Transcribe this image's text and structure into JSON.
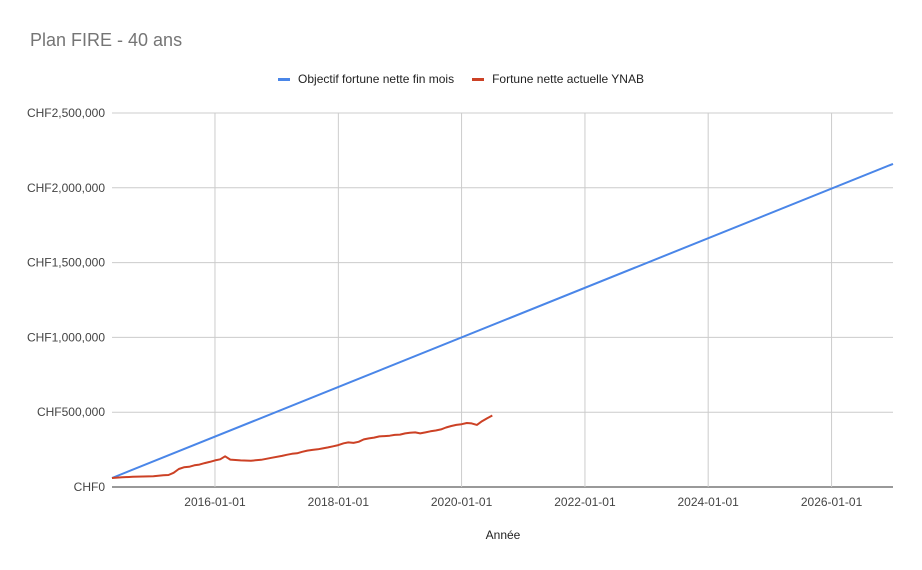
{
  "chart_data": {
    "type": "line",
    "title": "Plan FIRE - 40 ans",
    "xlabel": "Année",
    "ylabel": "",
    "x_range": [
      "2014-05-01",
      "2026-12-31"
    ],
    "ylim": [
      0,
      2500000
    ],
    "y_ticks": [
      0,
      500000,
      1000000,
      1500000,
      2000000,
      2500000
    ],
    "y_tick_labels": [
      "CHF0",
      "CHF500,000",
      "CHF1,000,000",
      "CHF1,500,000",
      "CHF2,000,000",
      "CHF2,500,000"
    ],
    "x_ticks": [
      "2016-01-01",
      "2018-01-01",
      "2020-01-01",
      "2022-01-01",
      "2024-01-01",
      "2026-01-01"
    ],
    "grid": true,
    "legend_position": "top",
    "series": [
      {
        "name": "Objectif fortune nette fin mois",
        "color": "#4a86e8",
        "points": [
          [
            "2014-05-01",
            60000
          ],
          [
            "2026-12-31",
            2160000
          ]
        ]
      },
      {
        "name": "Fortune nette actuelle YNAB",
        "color": "#cc4125",
        "points": [
          [
            "2014-05-01",
            60000
          ],
          [
            "2014-07-01",
            65000
          ],
          [
            "2014-09-01",
            68000
          ],
          [
            "2014-11-01",
            70000
          ],
          [
            "2015-01-01",
            72000
          ],
          [
            "2015-03-01",
            78000
          ],
          [
            "2015-04-01",
            80000
          ],
          [
            "2015-05-01",
            95000
          ],
          [
            "2015-06-01",
            120000
          ],
          [
            "2015-07-01",
            132000
          ],
          [
            "2015-08-01",
            135000
          ],
          [
            "2015-09-01",
            145000
          ],
          [
            "2015-10-01",
            150000
          ],
          [
            "2015-11-01",
            160000
          ],
          [
            "2015-12-01",
            168000
          ],
          [
            "2016-01-01",
            178000
          ],
          [
            "2016-02-01",
            185000
          ],
          [
            "2016-03-01",
            205000
          ],
          [
            "2016-04-01",
            183000
          ],
          [
            "2016-06-01",
            178000
          ],
          [
            "2016-08-01",
            176000
          ],
          [
            "2016-10-01",
            182000
          ],
          [
            "2016-12-01",
            195000
          ],
          [
            "2017-02-01",
            208000
          ],
          [
            "2017-03-01",
            215000
          ],
          [
            "2017-04-01",
            222000
          ],
          [
            "2017-05-01",
            225000
          ],
          [
            "2017-06-01",
            235000
          ],
          [
            "2017-07-01",
            243000
          ],
          [
            "2017-08-01",
            248000
          ],
          [
            "2017-09-01",
            252000
          ],
          [
            "2017-10-01",
            258000
          ],
          [
            "2017-11-01",
            265000
          ],
          [
            "2017-12-01",
            272000
          ],
          [
            "2018-01-01",
            280000
          ],
          [
            "2018-02-01",
            292000
          ],
          [
            "2018-03-01",
            298000
          ],
          [
            "2018-04-01",
            295000
          ],
          [
            "2018-05-01",
            302000
          ],
          [
            "2018-06-01",
            318000
          ],
          [
            "2018-07-01",
            325000
          ],
          [
            "2018-08-01",
            330000
          ],
          [
            "2018-09-01",
            338000
          ],
          [
            "2018-10-01",
            340000
          ],
          [
            "2018-11-01",
            343000
          ],
          [
            "2018-12-01",
            348000
          ],
          [
            "2019-01-01",
            350000
          ],
          [
            "2019-02-01",
            358000
          ],
          [
            "2019-03-01",
            362000
          ],
          [
            "2019-04-01",
            365000
          ],
          [
            "2019-05-01",
            358000
          ],
          [
            "2019-06-01",
            365000
          ],
          [
            "2019-07-01",
            372000
          ],
          [
            "2019-08-01",
            378000
          ],
          [
            "2019-09-01",
            385000
          ],
          [
            "2019-10-01",
            398000
          ],
          [
            "2019-11-01",
            408000
          ],
          [
            "2019-12-01",
            415000
          ],
          [
            "2020-01-01",
            420000
          ],
          [
            "2020-02-01",
            428000
          ],
          [
            "2020-03-01",
            425000
          ],
          [
            "2020-04-01",
            415000
          ],
          [
            "2020-05-01",
            440000
          ],
          [
            "2020-06-01",
            460000
          ],
          [
            "2020-07-01",
            478000
          ]
        ]
      }
    ]
  }
}
